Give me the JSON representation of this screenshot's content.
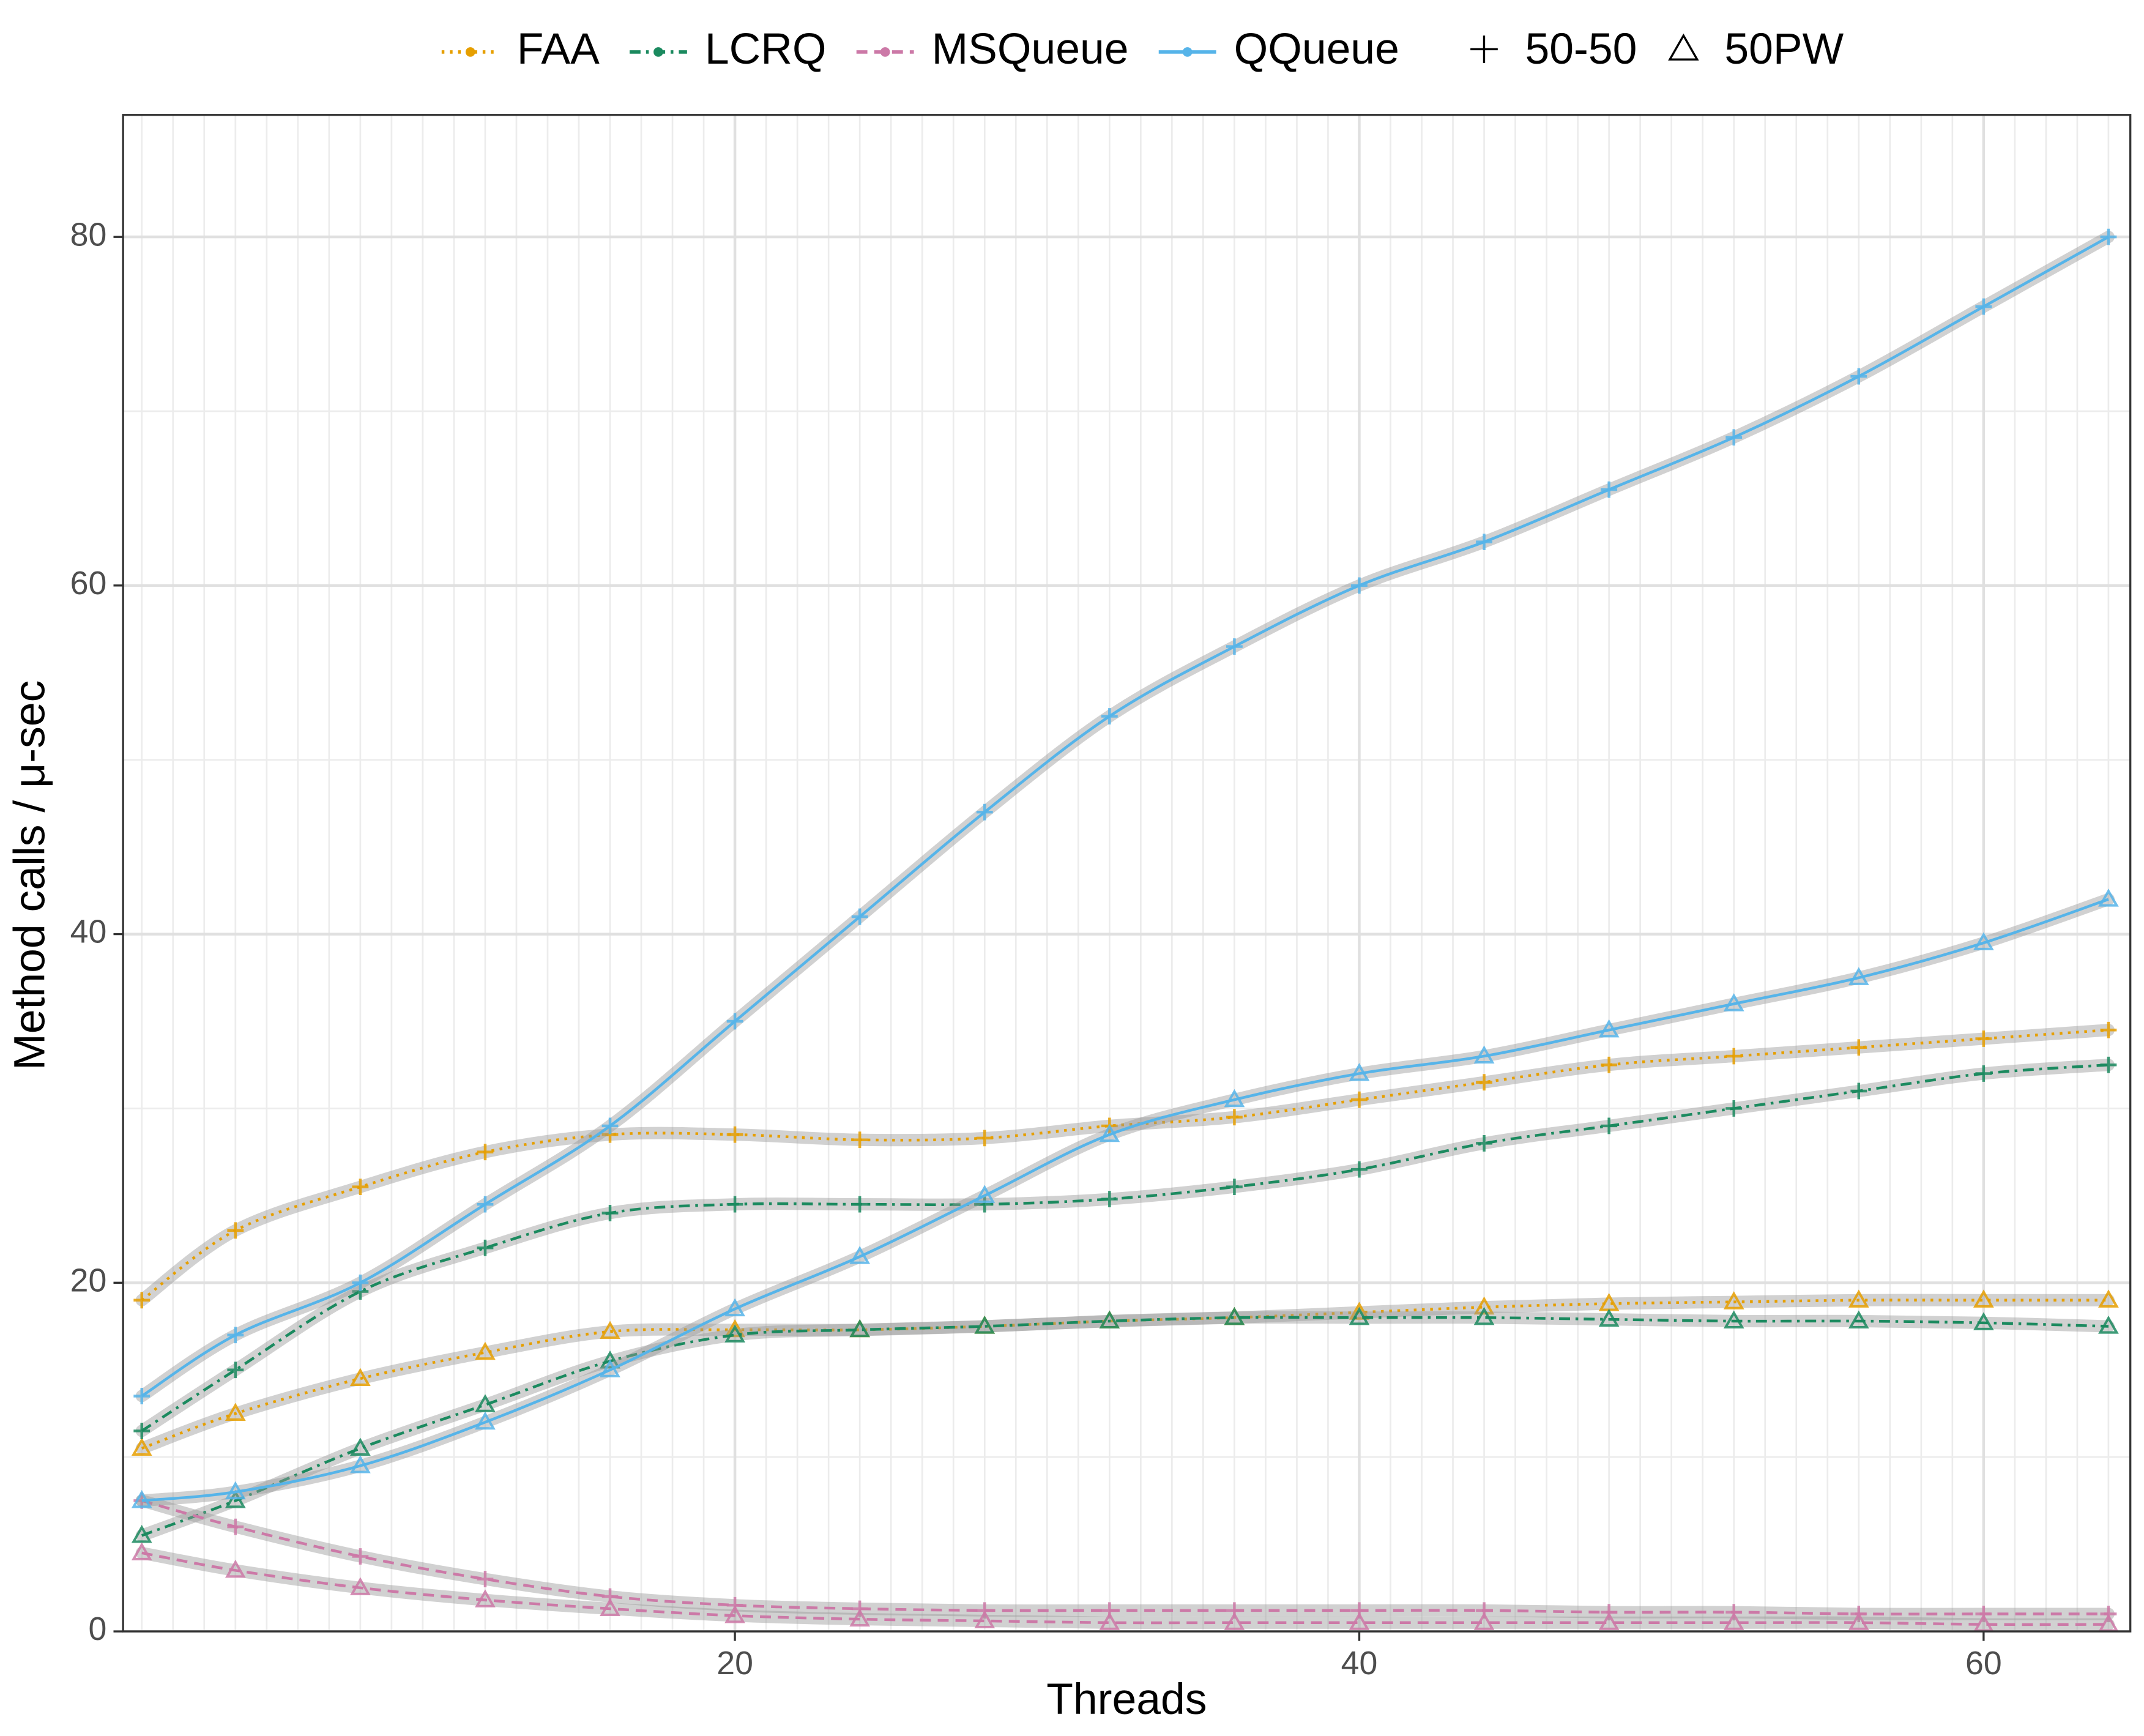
{
  "chart_data": {
    "type": "line",
    "xlabel": "Threads",
    "ylabel": "Method calls / μ-sec",
    "x": [
      1,
      4,
      8,
      12,
      16,
      20,
      24,
      28,
      32,
      36,
      40,
      44,
      48,
      52,
      56,
      60,
      64
    ],
    "xlim": [
      0.4,
      64.7
    ],
    "ylim": [
      0,
      87
    ],
    "xticks": [
      20,
      40,
      60
    ],
    "yticks": [
      0,
      20,
      40,
      60,
      80
    ],
    "xminor": [
      1,
      2,
      3,
      4,
      5,
      6,
      7,
      8,
      9,
      10,
      11,
      12,
      13,
      14,
      15,
      16,
      17,
      18,
      19,
      21,
      22,
      23,
      24,
      25,
      26,
      27,
      28,
      29,
      30,
      31,
      32,
      33,
      34,
      35,
      36,
      37,
      38,
      39,
      41,
      42,
      43,
      44,
      45,
      46,
      47,
      48,
      49,
      50,
      51,
      52,
      53,
      54,
      55,
      56,
      57,
      58,
      59,
      61,
      62,
      63,
      64
    ],
    "yminor": [
      10,
      30,
      50,
      70
    ],
    "grid": true,
    "legend": "top",
    "workloads": [
      {
        "name": "50-50",
        "marker": "plus"
      },
      {
        "name": "50PW",
        "marker": "triangle"
      }
    ],
    "queues": [
      {
        "name": "FAA",
        "color": "#E69F00",
        "line_style": "dotted",
        "workload_values": [
          [
            19,
            23,
            25.5,
            27.5,
            28.5,
            28.5,
            28.2,
            28.3,
            29,
            29.5,
            30.5,
            31.5,
            32.5,
            33,
            33.5,
            34,
            34.5
          ],
          [
            10.5,
            12.5,
            14.5,
            16,
            17.2,
            17.3,
            17.3,
            17.5,
            17.8,
            18,
            18.3,
            18.6,
            18.8,
            18.9,
            19,
            19,
            19
          ]
        ]
      },
      {
        "name": "LCRQ",
        "color": "#1B8A5F",
        "line_style": "dashdot",
        "workload_values": [
          [
            11.5,
            15,
            19.5,
            22,
            24,
            24.5,
            24.5,
            24.5,
            24.8,
            25.5,
            26.5,
            28,
            29,
            30,
            31,
            32,
            32.5
          ],
          [
            5.5,
            7.5,
            10.5,
            13,
            15.5,
            17,
            17.3,
            17.5,
            17.8,
            18,
            18,
            18,
            17.9,
            17.8,
            17.8,
            17.7,
            17.5
          ]
        ]
      },
      {
        "name": "MSQueue",
        "color": "#CC79A7",
        "line_style": "dashed",
        "workload_values": [
          [
            7.5,
            6,
            4.3,
            3,
            2,
            1.5,
            1.3,
            1.2,
            1.2,
            1.2,
            1.2,
            1.2,
            1.1,
            1.1,
            1,
            1,
            1
          ],
          [
            4.5,
            3.5,
            2.5,
            1.8,
            1.3,
            0.9,
            0.7,
            0.6,
            0.5,
            0.5,
            0.5,
            0.5,
            0.5,
            0.5,
            0.5,
            0.4,
            0.4
          ]
        ]
      },
      {
        "name": "QQueue",
        "color": "#56B4E9",
        "line_style": "solid",
        "workload_values": [
          [
            13.5,
            17,
            20,
            24.5,
            29,
            35,
            41,
            47,
            52.5,
            56.5,
            60,
            62.5,
            65.5,
            68.5,
            72,
            76,
            80
          ],
          [
            7.5,
            8,
            9.5,
            12,
            15,
            18.5,
            21.5,
            25,
            28.5,
            30.5,
            32,
            33,
            34.5,
            36,
            37.5,
            39.5,
            42
          ]
        ]
      }
    ]
  }
}
